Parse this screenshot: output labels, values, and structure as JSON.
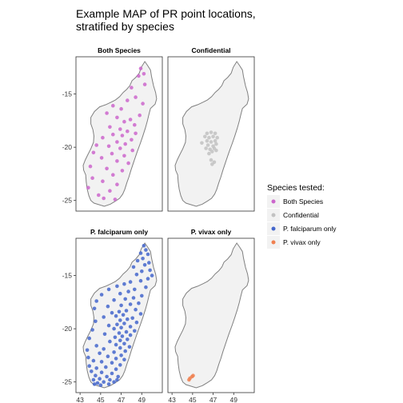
{
  "map": {
    "title_line1": "Example MAP of PR point locations,",
    "title_line2": "stratified by species",
    "land_color": "#f2f2f2",
    "outline_color": "#808080",
    "x_ticks": [
      43,
      45,
      47,
      49
    ],
    "y_ticks": [
      -15,
      -20,
      -25
    ],
    "lon_range": [
      42.6,
      51.0
    ],
    "lat_range": [
      -26.0,
      -11.5
    ],
    "outline": [
      [
        49.3,
        -11.95
      ],
      [
        49.55,
        -12.3
      ],
      [
        49.85,
        -12.75
      ],
      [
        49.95,
        -13.35
      ],
      [
        50.15,
        -14.25
      ],
      [
        50.35,
        -14.85
      ],
      [
        50.45,
        -15.45
      ],
      [
        50.3,
        -15.95
      ],
      [
        49.85,
        -16.35
      ],
      [
        49.7,
        -16.9
      ],
      [
        49.55,
        -17.5
      ],
      [
        49.35,
        -18.2
      ],
      [
        49.1,
        -18.95
      ],
      [
        48.85,
        -19.65
      ],
      [
        48.55,
        -20.45
      ],
      [
        48.25,
        -21.3
      ],
      [
        47.95,
        -22.15
      ],
      [
        47.75,
        -22.8
      ],
      [
        47.55,
        -23.35
      ],
      [
        47.35,
        -23.95
      ],
      [
        47.15,
        -24.4
      ],
      [
        46.85,
        -24.8
      ],
      [
        46.45,
        -25.05
      ],
      [
        45.95,
        -25.35
      ],
      [
        45.35,
        -25.55
      ],
      [
        44.85,
        -25.4
      ],
      [
        44.35,
        -25.25
      ],
      [
        44.05,
        -25.0
      ],
      [
        43.85,
        -24.55
      ],
      [
        43.7,
        -23.95
      ],
      [
        43.6,
        -23.3
      ],
      [
        43.55,
        -22.6
      ],
      [
        43.35,
        -22.15
      ],
      [
        43.3,
        -21.7
      ],
      [
        43.5,
        -21.2
      ],
      [
        43.75,
        -20.7
      ],
      [
        44.05,
        -20.15
      ],
      [
        44.3,
        -19.55
      ],
      [
        44.35,
        -18.95
      ],
      [
        44.25,
        -18.35
      ],
      [
        44.05,
        -17.8
      ],
      [
        44.05,
        -17.2
      ],
      [
        44.4,
        -16.65
      ],
      [
        44.9,
        -16.2
      ],
      [
        45.5,
        -16.0
      ],
      [
        46.05,
        -15.75
      ],
      [
        46.45,
        -15.55
      ],
      [
        46.85,
        -15.25
      ],
      [
        47.2,
        -14.85
      ],
      [
        47.55,
        -14.55
      ],
      [
        47.85,
        -14.2
      ],
      [
        48.05,
        -13.75
      ],
      [
        48.4,
        -13.45
      ],
      [
        48.75,
        -13.05
      ],
      [
        48.95,
        -12.5
      ]
    ]
  },
  "panels": [
    {
      "label": "Both Species",
      "color": "#cc66cc",
      "points": [
        [
          48.9,
          -12.6
        ],
        [
          49.2,
          -13.1
        ],
        [
          48.7,
          -13.3
        ],
        [
          48.0,
          -14.4
        ],
        [
          49.3,
          -14.1
        ],
        [
          48.4,
          -15.3
        ],
        [
          47.6,
          -15.6
        ],
        [
          49.1,
          -15.9
        ],
        [
          46.2,
          -16.1
        ],
        [
          47.0,
          -16.4
        ],
        [
          45.6,
          -16.8
        ],
        [
          48.8,
          -17.0
        ],
        [
          46.6,
          -17.2
        ],
        [
          47.9,
          -17.4
        ],
        [
          47.3,
          -17.6
        ],
        [
          48.3,
          -17.9
        ],
        [
          45.9,
          -18.1
        ],
        [
          46.9,
          -18.3
        ],
        [
          47.6,
          -18.5
        ],
        [
          48.4,
          -18.7
        ],
        [
          46.2,
          -18.8
        ],
        [
          47.1,
          -18.9
        ],
        [
          45.2,
          -19.1
        ],
        [
          48.0,
          -19.3
        ],
        [
          46.6,
          -19.5
        ],
        [
          47.4,
          -19.7
        ],
        [
          44.6,
          -19.8
        ],
        [
          45.8,
          -19.9
        ],
        [
          46.9,
          -20.1
        ],
        [
          48.1,
          -20.3
        ],
        [
          44.3,
          -20.5
        ],
        [
          46.1,
          -20.6
        ],
        [
          47.3,
          -20.8
        ],
        [
          45.1,
          -21.0
        ],
        [
          46.6,
          -21.3
        ],
        [
          47.7,
          -21.5
        ],
        [
          44.0,
          -21.8
        ],
        [
          45.6,
          -22.0
        ],
        [
          47.1,
          -22.2
        ],
        [
          46.2,
          -22.6
        ],
        [
          44.2,
          -22.9
        ],
        [
          45.2,
          -23.2
        ],
        [
          46.6,
          -23.5
        ],
        [
          43.8,
          -23.8
        ],
        [
          45.9,
          -24.1
        ],
        [
          44.8,
          -24.5
        ],
        [
          45.3,
          -24.8
        ],
        [
          46.4,
          -24.9
        ]
      ]
    },
    {
      "label": "Confidential",
      "color": "#c2c2c2",
      "points": [
        [
          46.4,
          -18.7
        ],
        [
          46.8,
          -18.6
        ],
        [
          47.2,
          -18.7
        ],
        [
          46.2,
          -19.0
        ],
        [
          46.6,
          -19.1
        ],
        [
          47.0,
          -19.0
        ],
        [
          47.4,
          -19.1
        ],
        [
          46.4,
          -19.4
        ],
        [
          46.8,
          -19.5
        ],
        [
          47.2,
          -19.4
        ],
        [
          45.9,
          -19.6
        ],
        [
          46.5,
          -19.8
        ],
        [
          47.0,
          -19.9
        ],
        [
          47.3,
          -19.7
        ],
        [
          46.3,
          -20.1
        ],
        [
          46.7,
          -20.2
        ],
        [
          46.9,
          -20.4
        ],
        [
          47.1,
          -20.1
        ],
        [
          46.6,
          -20.6
        ],
        [
          47.3,
          -20.3
        ],
        [
          46.8,
          -21.2
        ],
        [
          47.1,
          -21.4
        ],
        [
          46.9,
          -21.6
        ]
      ]
    },
    {
      "label": "P. falciparum only",
      "color": "#4466cc",
      "points": [
        [
          49.2,
          -12.2
        ],
        [
          49.4,
          -12.6
        ],
        [
          48.9,
          -12.9
        ],
        [
          49.6,
          -13.0
        ],
        [
          49.1,
          -13.4
        ],
        [
          48.6,
          -13.6
        ],
        [
          49.7,
          -13.8
        ],
        [
          49.3,
          -14.0
        ],
        [
          48.2,
          -14.2
        ],
        [
          49.8,
          -14.5
        ],
        [
          49.0,
          -14.6
        ],
        [
          48.5,
          -14.9
        ],
        [
          50.0,
          -15.0
        ],
        [
          49.6,
          -15.3
        ],
        [
          48.9,
          -15.5
        ],
        [
          47.9,
          -15.6
        ],
        [
          47.3,
          -15.8
        ],
        [
          46.6,
          -16.0
        ],
        [
          49.4,
          -16.1
        ],
        [
          48.3,
          -16.3
        ],
        [
          45.8,
          -16.3
        ],
        [
          47.7,
          -16.5
        ],
        [
          46.9,
          -16.7
        ],
        [
          45.1,
          -16.8
        ],
        [
          49.0,
          -16.9
        ],
        [
          48.2,
          -17.1
        ],
        [
          47.4,
          -17.2
        ],
        [
          46.3,
          -17.3
        ],
        [
          44.6,
          -17.4
        ],
        [
          48.7,
          -17.6
        ],
        [
          47.9,
          -17.7
        ],
        [
          47.0,
          -17.8
        ],
        [
          45.7,
          -17.9
        ],
        [
          44.4,
          -18.1
        ],
        [
          48.4,
          -18.2
        ],
        [
          47.5,
          -18.3
        ],
        [
          46.8,
          -18.4
        ],
        [
          46.1,
          -18.5
        ],
        [
          48.9,
          -18.6
        ],
        [
          47.2,
          -18.7
        ],
        [
          46.5,
          -18.8
        ],
        [
          45.3,
          -18.9
        ],
        [
          48.1,
          -19.0
        ],
        [
          47.6,
          -19.1
        ],
        [
          46.9,
          -19.2
        ],
        [
          44.5,
          -19.3
        ],
        [
          48.5,
          -19.4
        ],
        [
          47.3,
          -19.5
        ],
        [
          46.6,
          -19.6
        ],
        [
          45.8,
          -19.7
        ],
        [
          47.9,
          -19.8
        ],
        [
          47.0,
          -19.9
        ],
        [
          46.3,
          -20.0
        ],
        [
          44.2,
          -20.1
        ],
        [
          48.3,
          -20.2
        ],
        [
          47.5,
          -20.3
        ],
        [
          46.8,
          -20.4
        ],
        [
          45.4,
          -20.5
        ],
        [
          47.9,
          -20.6
        ],
        [
          47.1,
          -20.7
        ],
        [
          46.4,
          -20.8
        ],
        [
          43.9,
          -20.9
        ],
        [
          47.6,
          -21.0
        ],
        [
          46.9,
          -21.1
        ],
        [
          45.9,
          -21.2
        ],
        [
          47.3,
          -21.4
        ],
        [
          46.5,
          -21.5
        ],
        [
          44.6,
          -21.6
        ],
        [
          47.8,
          -21.7
        ],
        [
          46.9,
          -21.8
        ],
        [
          45.3,
          -21.9
        ],
        [
          43.7,
          -22.0
        ],
        [
          47.4,
          -22.1
        ],
        [
          46.3,
          -22.2
        ],
        [
          44.9,
          -22.3
        ],
        [
          47.0,
          -22.5
        ],
        [
          45.7,
          -22.6
        ],
        [
          43.8,
          -22.7
        ],
        [
          46.5,
          -22.8
        ],
        [
          47.3,
          -22.9
        ],
        [
          44.3,
          -23.0
        ],
        [
          45.1,
          -23.1
        ],
        [
          46.1,
          -23.2
        ],
        [
          46.9,
          -23.4
        ],
        [
          43.9,
          -23.5
        ],
        [
          45.5,
          -23.6
        ],
        [
          44.6,
          -23.7
        ],
        [
          46.5,
          -23.8
        ],
        [
          44.1,
          -24.0
        ],
        [
          45.1,
          -24.1
        ],
        [
          46.1,
          -24.2
        ],
        [
          44.5,
          -24.4
        ],
        [
          45.6,
          -24.5
        ],
        [
          46.7,
          -24.5
        ],
        [
          44.9,
          -24.7
        ],
        [
          45.9,
          -24.8
        ],
        [
          44.3,
          -24.8
        ],
        [
          45.3,
          -25.0
        ],
        [
          46.3,
          -25.0
        ],
        [
          44.7,
          -25.1
        ],
        [
          45.8,
          -25.2
        ],
        [
          45.0,
          -25.3
        ],
        [
          44.4,
          -25.2
        ],
        [
          46.6,
          -24.8
        ]
      ]
    },
    {
      "label": "P. vivax only",
      "color": "#f08050",
      "points": [
        [
          44.75,
          -24.65
        ],
        [
          44.95,
          -24.5
        ],
        [
          44.65,
          -24.8
        ],
        [
          45.05,
          -24.4
        ]
      ]
    }
  ],
  "legend": {
    "title": "Species tested:",
    "items": [
      {
        "label": "Both Species",
        "color": "#cc66cc"
      },
      {
        "label": "Confidential",
        "color": "#c2c2c2"
      },
      {
        "label": "P. falciparum only",
        "color": "#4466cc"
      },
      {
        "label": "P. vivax only",
        "color": "#f08050"
      }
    ]
  }
}
